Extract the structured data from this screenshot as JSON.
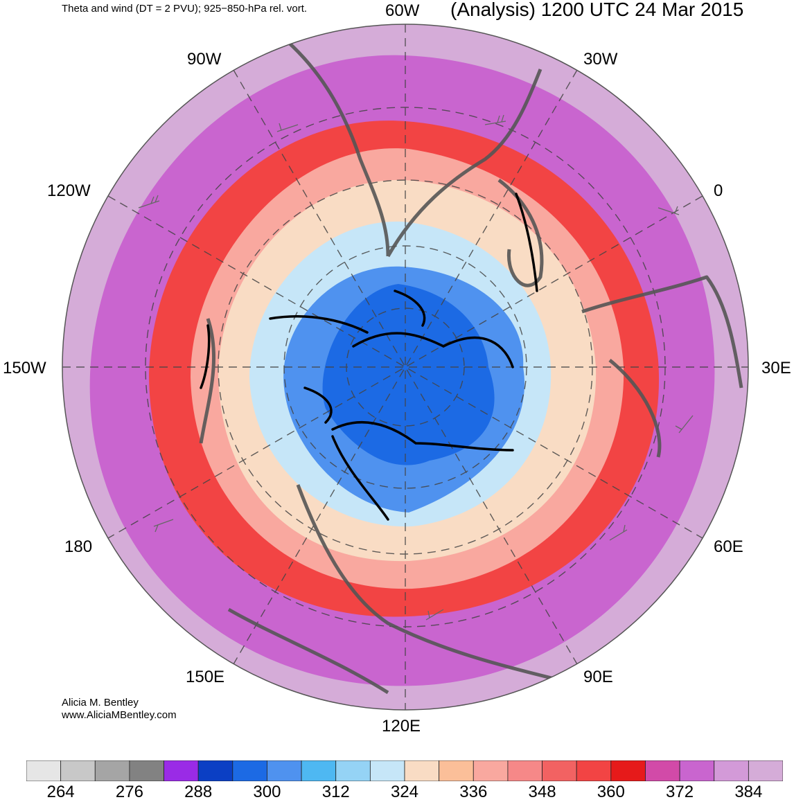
{
  "header": {
    "left_title": "Theta and wind (DT = 2 PVU); 925−850-hPa rel. vort.",
    "right_title": "(Analysis) 1200 UTC 24 Mar 2015"
  },
  "longitude_labels": [
    "60W",
    "30W",
    "0",
    "30E",
    "60E",
    "90E",
    "120E",
    "150E",
    "180",
    "150W",
    "120W",
    "90W"
  ],
  "credit": {
    "author": "Alicia M. Bentley",
    "website": "www.AliciaMBentley.com"
  },
  "colorbar": {
    "colors": [
      "#e6e6e6",
      "#c8c8c8",
      "#a5a5a5",
      "#828282",
      "#9a2be6",
      "#0b3fc4",
      "#1c6ae4",
      "#4f92ef",
      "#4eb8f2",
      "#95d3f5",
      "#c6e6f8",
      "#f9dcc4",
      "#fbbf99",
      "#f9a89f",
      "#f68888",
      "#f26262",
      "#f24444",
      "#e61a1a",
      "#d24aa8",
      "#c965cf",
      "#d39ad8",
      "#d5acd8"
    ],
    "labels": [
      "264",
      "276",
      "288",
      "300",
      "312",
      "324",
      "336",
      "348",
      "360",
      "372",
      "384"
    ]
  },
  "map_colors": {
    "outer": "#d5acd8",
    "magenta": "#c965cf",
    "red_jet": "#f24444",
    "salmon": "#f9a89f",
    "peach": "#f9dcc4",
    "light_blue": "#c6e6f8",
    "blue": "#4f92ef",
    "dark_blue": "#1c6ae4",
    "coastline": "#555555",
    "vorticity": "#000000"
  }
}
